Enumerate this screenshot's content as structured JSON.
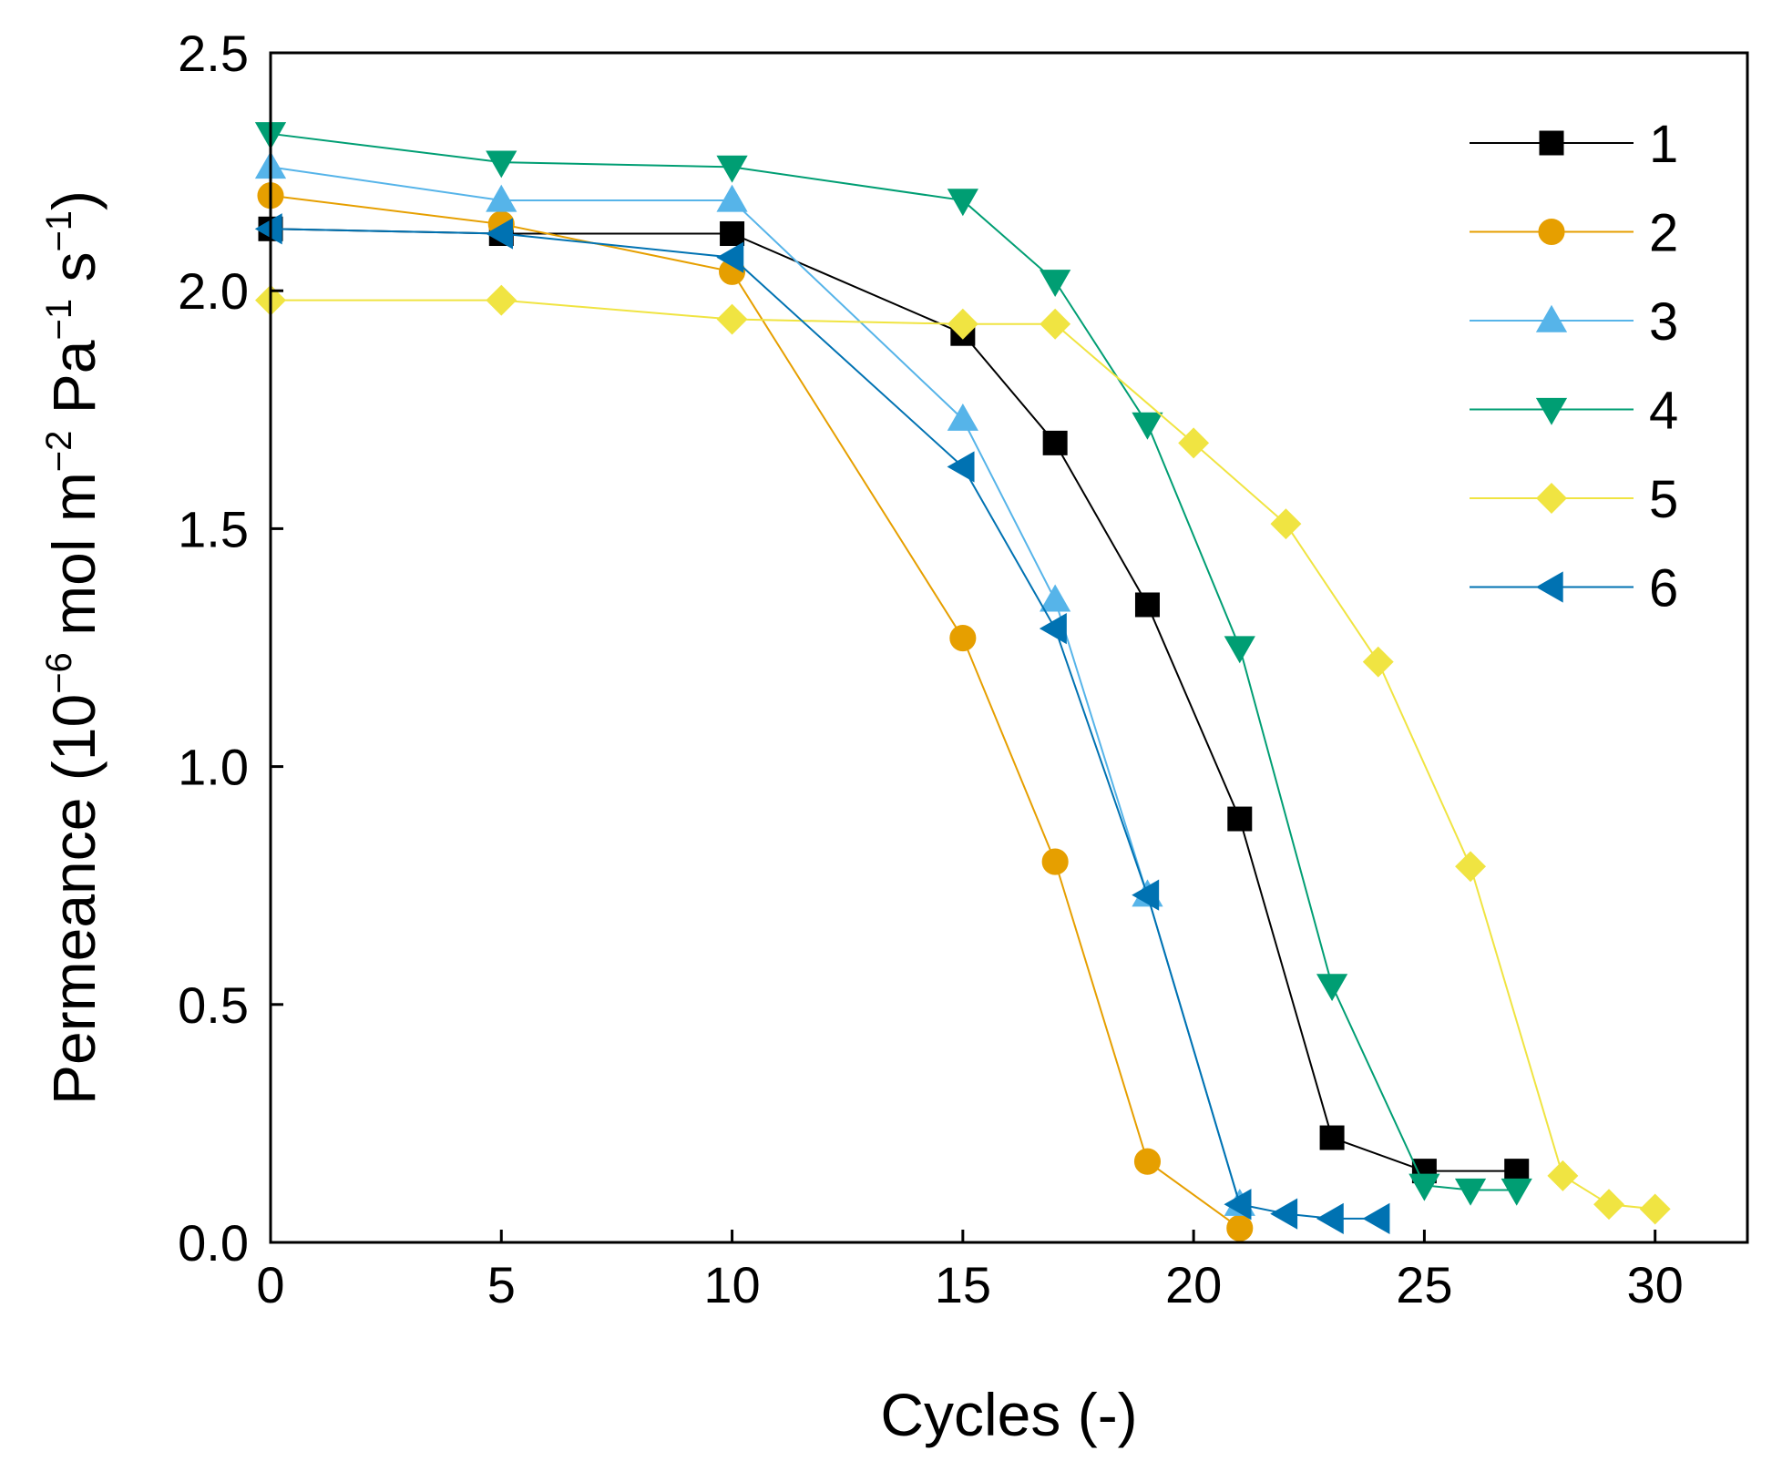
{
  "chart_data": {
    "type": "line",
    "title": "",
    "xlabel": "Cycles (-)",
    "ylabel_parts": {
      "main": "Permeance (10",
      "exp1": "−6",
      "mid1": " mol m",
      "exp2": "−2",
      "mid2": " Pa",
      "exp3": "−1",
      "mid3": " s",
      "exp4": "−1",
      "end": ")"
    },
    "xlim": [
      0,
      32
    ],
    "ylim": [
      0,
      2.5
    ],
    "xticks": [
      0,
      5,
      10,
      15,
      20,
      25,
      30
    ],
    "yticks": [
      0.0,
      0.5,
      1.0,
      1.5,
      2.0,
      2.5
    ],
    "xtick_labels": [
      "0",
      "5",
      "10",
      "15",
      "20",
      "25",
      "30"
    ],
    "ytick_labels": [
      "0.0",
      "0.5",
      "1.0",
      "1.5",
      "2.0",
      "2.5"
    ],
    "legend_position": "top-right",
    "grid": false,
    "series": [
      {
        "name": "1",
        "color": "#000000",
        "marker": "square",
        "x": [
          0,
          5,
          10,
          15,
          17,
          19,
          21,
          23,
          25,
          27
        ],
        "y": [
          2.13,
          2.12,
          2.12,
          1.91,
          1.68,
          1.34,
          0.89,
          0.22,
          0.15,
          0.15
        ]
      },
      {
        "name": "2",
        "color": "#E69F00",
        "marker": "circle",
        "x": [
          0,
          5,
          10,
          15,
          17,
          19,
          21
        ],
        "y": [
          2.2,
          2.14,
          2.04,
          1.27,
          0.8,
          0.17,
          0.03
        ]
      },
      {
        "name": "3",
        "color": "#56B4E9",
        "marker": "triangle-up",
        "x": [
          0,
          5,
          10,
          15,
          17,
          19,
          21
        ],
        "y": [
          2.26,
          2.19,
          2.19,
          1.73,
          1.35,
          0.73,
          0.08
        ]
      },
      {
        "name": "4",
        "color": "#009E73",
        "marker": "triangle-down",
        "x": [
          0,
          5,
          10,
          15,
          17,
          19,
          21,
          23,
          25,
          26,
          27
        ],
        "y": [
          2.33,
          2.27,
          2.26,
          2.19,
          2.02,
          1.72,
          1.25,
          0.54,
          0.12,
          0.11,
          0.11
        ]
      },
      {
        "name": "5",
        "color": "#F0E442",
        "marker": "diamond",
        "x": [
          0,
          5,
          10,
          15,
          17,
          20,
          22,
          24,
          26,
          28,
          29,
          30
        ],
        "y": [
          1.98,
          1.98,
          1.94,
          1.93,
          1.93,
          1.68,
          1.51,
          1.22,
          0.79,
          0.14,
          0.08,
          0.07
        ]
      },
      {
        "name": "6",
        "color": "#0072B2",
        "marker": "triangle-left",
        "x": [
          0,
          5,
          10,
          15,
          17,
          19,
          21,
          22,
          23,
          24
        ],
        "y": [
          2.13,
          2.12,
          2.07,
          1.63,
          1.29,
          0.73,
          0.08,
          0.06,
          0.05,
          0.05
        ]
      }
    ]
  }
}
